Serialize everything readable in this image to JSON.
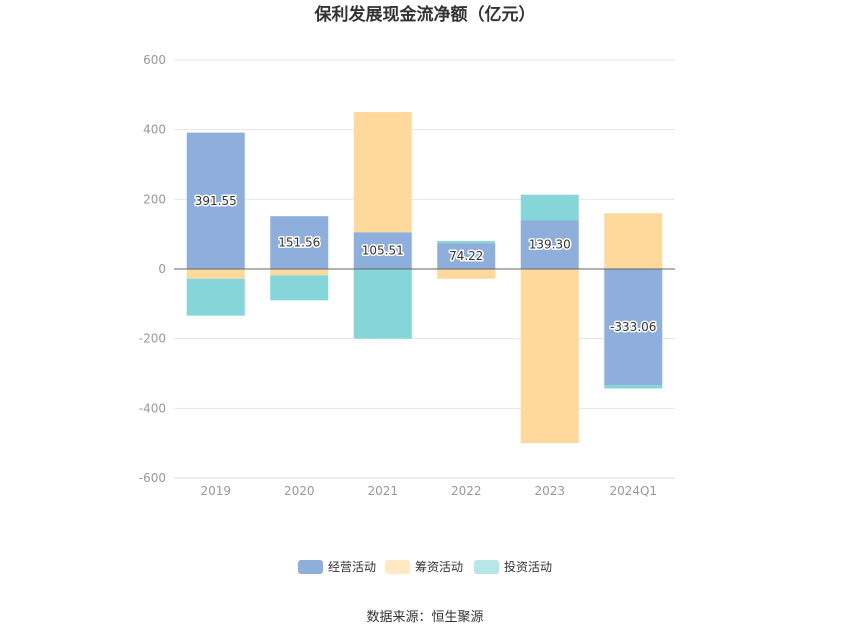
{
  "chart_data": {
    "type": "bar",
    "stacked": true,
    "title": "保利发展现金流净额（亿元）",
    "categories": [
      "2019",
      "2020",
      "2021",
      "2022",
      "2023",
      "2024Q1"
    ],
    "ylim": [
      -600,
      600
    ],
    "yticks": [
      600,
      400,
      200,
      0,
      -200,
      -400,
      -600
    ],
    "grid": true,
    "legend_position": "bottom",
    "series": [
      {
        "name": "经营活动",
        "color": "#8eaedb",
        "values": [
          391.55,
          151.56,
          105.51,
          74.22,
          139.3,
          -333.06
        ],
        "labels": [
          "391.55",
          "151.56",
          "105.51",
          "74.22",
          "139.30",
          "-333.06"
        ]
      },
      {
        "name": "筹资活动",
        "color": "#ffd99c",
        "values": [
          -28,
          -18,
          345,
          -28,
          -500,
          160
        ]
      },
      {
        "name": "投资活动",
        "color": "#86d6d9",
        "values": [
          -106,
          -72,
          -200,
          6,
          74,
          -10
        ]
      }
    ],
    "source": "数据来源：恒生聚源"
  }
}
